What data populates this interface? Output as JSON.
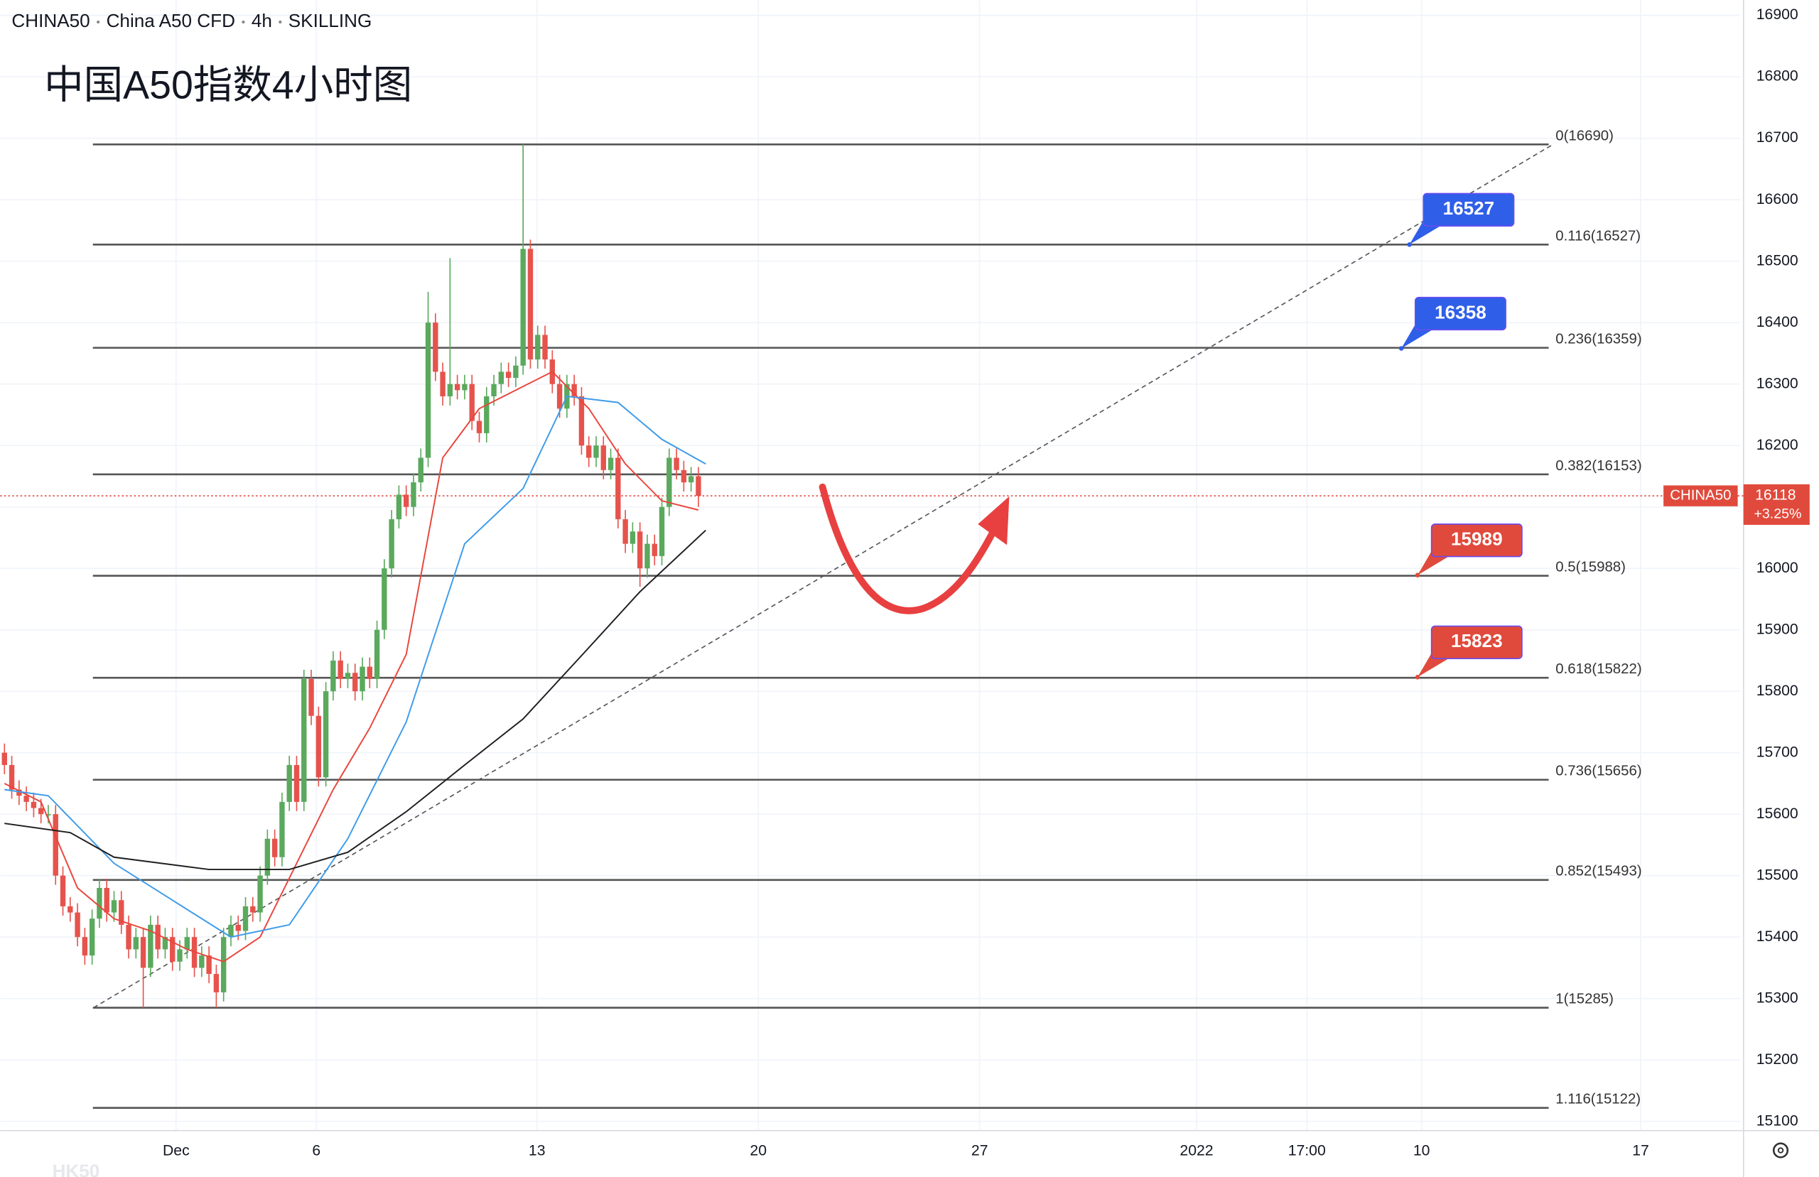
{
  "chart_data": {
    "type": "candlestick",
    "header": [
      "CHINA50",
      "China A50 CFD",
      "4h",
      "SKILLING"
    ],
    "title": "中国A50指数4小时图",
    "watermark": "HK50",
    "xlim": [
      -0.6,
      237.6
    ],
    "xticks": [
      {
        "value": 23.5,
        "label": "Dec"
      },
      {
        "value": 42.7,
        "label": "6"
      },
      {
        "value": 72.9,
        "label": "13"
      },
      {
        "value": 103.2,
        "label": "20"
      },
      {
        "value": 133.5,
        "label": "27"
      },
      {
        "value": 163.2,
        "label": "2022"
      },
      {
        "value": 178.3,
        "label": "17:00"
      },
      {
        "value": 194,
        "label": "10"
      },
      {
        "value": 224,
        "label": "17"
      }
    ],
    "ylim": [
      15085,
      16925
    ],
    "yticks": [
      15100,
      15200,
      15300,
      15400,
      15500,
      15600,
      15700,
      15800,
      15900,
      16000,
      16100,
      16200,
      16300,
      16400,
      16500,
      16600,
      16700,
      16800,
      16900
    ],
    "grid": true,
    "up_color": "#5aa95d",
    "down_color": "#e6534c",
    "open": [
      15700,
      15680,
      15640,
      15630,
      15620,
      15610,
      15600,
      15600,
      15500,
      15450,
      15440,
      15400,
      15370,
      15430,
      15480,
      15440,
      15460,
      15420,
      15380,
      15400,
      15350,
      15420,
      15380,
      15400,
      15360,
      15380,
      15400,
      15350,
      15370,
      15340,
      15310,
      15400,
      15420,
      15410,
      15450,
      15440,
      15500,
      15560,
      15530,
      15620,
      15680,
      15620,
      15820,
      15760,
      15660,
      15800,
      15850,
      15820,
      15830,
      15800,
      15840,
      15820,
      15900,
      16000,
      16080,
      16120,
      16100,
      16140,
      16180,
      16400,
      16320,
      16280,
      16300,
      16290,
      16300,
      16240,
      16220,
      16280,
      16300,
      16320,
      16310,
      16330,
      16520,
      16340,
      16380,
      16340,
      16300,
      16260,
      16300,
      16280,
      16200,
      16180,
      16200,
      16160,
      16180,
      16080,
      16040,
      16060,
      16000,
      16040,
      16020,
      16100,
      16180,
      16160,
      16140,
      16150
    ],
    "high": [
      15715,
      15695,
      15655,
      15645,
      15635,
      15625,
      15615,
      15615,
      15515,
      15465,
      15455,
      15415,
      15445,
      15495,
      15495,
      15475,
      15475,
      15435,
      15415,
      15415,
      15435,
      15435,
      15415,
      15415,
      15395,
      15415,
      15415,
      15385,
      15385,
      15355,
      15415,
      15435,
      15435,
      15465,
      15465,
      15515,
      15575,
      15575,
      15635,
      15695,
      15695,
      15835,
      15835,
      15775,
      15815,
      15865,
      15865,
      15845,
      15845,
      15855,
      15855,
      15915,
      16015,
      16095,
      16135,
      16135,
      16155,
      16195,
      16450,
      16415,
      16335,
      16505,
      16315,
      16315,
      16315,
      16255,
      16295,
      16315,
      16335,
      16335,
      16345,
      16690,
      16535,
      16395,
      16395,
      16355,
      16315,
      16315,
      16315,
      16295,
      16215,
      16215,
      16215,
      16195,
      16195,
      16095,
      16075,
      16075,
      16055,
      16055,
      16115,
      16195,
      16195,
      16175,
      16165,
      16165
    ],
    "low": [
      15665,
      15625,
      15615,
      15605,
      15595,
      15585,
      15585,
      15485,
      15435,
      15425,
      15385,
      15355,
      15355,
      15415,
      15425,
      15425,
      15405,
      15365,
      15365,
      15285,
      15335,
      15365,
      15365,
      15345,
      15345,
      15365,
      15335,
      15335,
      15325,
      15285,
      15295,
      15385,
      15395,
      15395,
      15425,
      15425,
      15485,
      15515,
      15515,
      15605,
      15605,
      15605,
      15745,
      15645,
      15645,
      15785,
      15805,
      15805,
      15785,
      15785,
      15805,
      15805,
      15885,
      15985,
      16065,
      16085,
      16085,
      16125,
      16165,
      16305,
      16265,
      16265,
      16275,
      16275,
      16225,
      16205,
      16205,
      16265,
      16285,
      16295,
      16295,
      16315,
      16325,
      16325,
      16325,
      16285,
      16245,
      16245,
      16265,
      16185,
      16165,
      16165,
      16145,
      16145,
      16065,
      16025,
      16025,
      15970,
      15985,
      16005,
      16005,
      16085,
      16145,
      16125,
      16125,
      16100
    ],
    "close": [
      15680,
      15640,
      15630,
      15620,
      15610,
      15600,
      15600,
      15500,
      15450,
      15440,
      15400,
      15370,
      15430,
      15480,
      15440,
      15460,
      15420,
      15380,
      15400,
      15350,
      15420,
      15380,
      15400,
      15360,
      15380,
      15400,
      15350,
      15370,
      15340,
      15310,
      15400,
      15420,
      15410,
      15450,
      15440,
      15500,
      15560,
      15530,
      15620,
      15680,
      15620,
      15820,
      15760,
      15660,
      15800,
      15850,
      15820,
      15830,
      15800,
      15840,
      15820,
      15900,
      16000,
      16080,
      16120,
      16100,
      16140,
      16180,
      16400,
      16320,
      16280,
      16300,
      16290,
      16300,
      16240,
      16220,
      16280,
      16300,
      16320,
      16310,
      16330,
      16520,
      16340,
      16380,
      16340,
      16300,
      16260,
      16300,
      16280,
      16200,
      16180,
      16200,
      16160,
      16180,
      16080,
      16040,
      16060,
      16000,
      16040,
      16020,
      16100,
      16180,
      16160,
      16140,
      16150,
      16118
    ],
    "moving_averages": [
      {
        "color": "#e8463c",
        "x": [
          0,
          5,
          10,
          15,
          20,
          25,
          30,
          35,
          40,
          45,
          50,
          55,
          60,
          65,
          70,
          75,
          80,
          85,
          90,
          95
        ],
        "values": [
          15650,
          15620,
          15480,
          15430,
          15410,
          15380,
          15360,
          15400,
          15520,
          15640,
          15740,
          15860,
          16180,
          16260,
          16290,
          16320,
          16260,
          16170,
          16110,
          16095
        ]
      },
      {
        "color": "#3d9be9",
        "x": [
          0,
          6,
          15,
          23,
          31,
          39,
          47,
          55,
          63,
          71,
          77,
          84,
          90,
          96
        ],
        "values": [
          15640,
          15630,
          15520,
          15460,
          15400,
          15420,
          15560,
          15750,
          16040,
          16130,
          16280,
          16270,
          16210,
          16170
        ]
      },
      {
        "color": "#1e1e1e",
        "x": [
          0,
          9,
          15,
          28,
          39,
          47,
          55,
          63,
          71,
          79,
          87,
          96
        ],
        "values": [
          15585,
          15570,
          15530,
          15510,
          15510,
          15538,
          15604,
          15680,
          15755,
          15858,
          15962,
          16062
        ]
      }
    ],
    "trendline": {
      "x": [
        12.2,
        212
      ],
      "values": [
        15285,
        16690
      ]
    },
    "fib_levels": [
      {
        "label": "0(16690)",
        "value": 16690
      },
      {
        "label": "0.116(16527)",
        "value": 16527
      },
      {
        "label": "0.236(16359)",
        "value": 16359
      },
      {
        "label": "0.382(16153)",
        "value": 16153
      },
      {
        "label": "0.5(15988)",
        "value": 15988
      },
      {
        "label": "0.618(15822)",
        "value": 15822
      },
      {
        "label": "0.736(15656)",
        "value": 15656
      },
      {
        "label": "0.852(15493)",
        "value": 15493
      },
      {
        "label": "1(15285)",
        "value": 15285
      },
      {
        "label": "1.116(15122)",
        "value": 15122
      }
    ],
    "price_callouts": [
      {
        "value": 16527,
        "color": "#2f5fe8"
      },
      {
        "value": 16358,
        "color": "#2f5fe8"
      },
      {
        "value": 15989,
        "color": "#e04a3c"
      },
      {
        "value": 15823,
        "color": "#e04a3c"
      }
    ],
    "current_price": {
      "symbol": "CHINA50",
      "value": 16118,
      "change": "+3.25%",
      "color": "#e04a3c"
    }
  }
}
